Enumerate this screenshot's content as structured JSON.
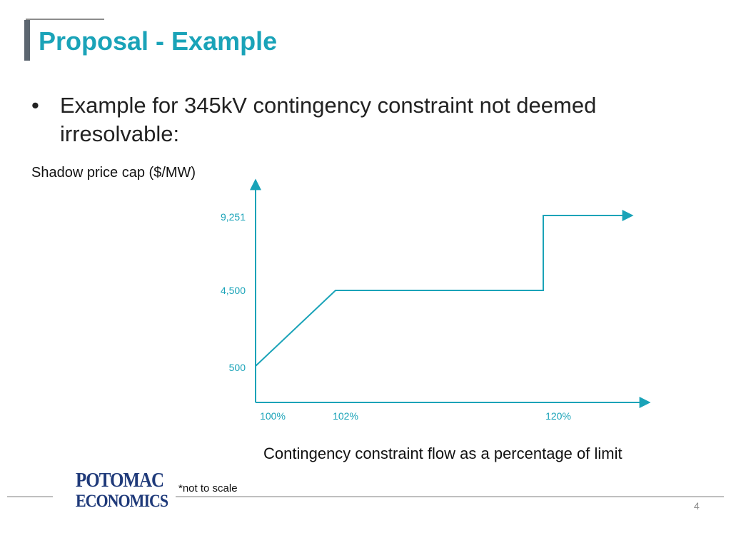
{
  "title": "Proposal - Example",
  "bullet": "Example for 345kV contingency constraint not deemed irresolvable:",
  "footnote": "*not to scale",
  "page_number": "4",
  "logo": {
    "line1": "POTOMAC",
    "line2": "ECONOMICS"
  },
  "colors": {
    "accent": "#1aa3b8",
    "title_bar": "#5c6670",
    "logo": "#1f3a7a"
  },
  "chart_data": {
    "type": "line",
    "ylabel": "Shadow price cap ($/MW)",
    "xlabel": "Contingency constraint flow as a percentage of limit",
    "x_ticks": [
      "100%",
      "102%",
      "120%"
    ],
    "y_ticks": [
      "500",
      "4,500",
      "9,251"
    ],
    "note": "*not to scale",
    "series": [
      {
        "points": [
          {
            "x": "100%",
            "y": 500
          },
          {
            "x": "102%",
            "y": 4500
          },
          {
            "x": "120%",
            "y": 4500
          },
          {
            "x": "120%",
            "y": 9251
          },
          {
            "x": ">120%",
            "y": 9251
          }
        ]
      }
    ]
  }
}
